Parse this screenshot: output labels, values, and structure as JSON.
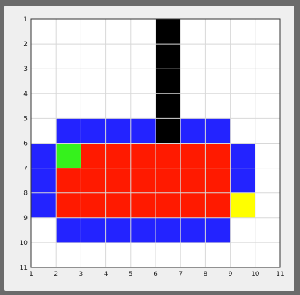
{
  "window": {
    "title": ""
  },
  "plot": {
    "xlim": [
      1,
      11
    ],
    "ylim": [
      1,
      11
    ],
    "y_reversed": true,
    "grid": true,
    "x_ticks": [
      "1",
      "2",
      "3",
      "4",
      "5",
      "6",
      "7",
      "8",
      "9",
      "10",
      "11"
    ],
    "y_ticks": [
      "1",
      "2",
      "3",
      "4",
      "5",
      "6",
      "7",
      "8",
      "9",
      "10",
      "11"
    ],
    "colors": {
      "background": "#ffffff",
      "grid": "#d8d8d8",
      "blue": "#2323ff",
      "red": "#ff1a00",
      "black": "#000000",
      "green": "#35f21c",
      "yellow": "#ffff00"
    },
    "cells": [
      {
        "name": "blue-top-bar",
        "color": "blue",
        "x0": 2,
        "x1": 9,
        "y0": 5,
        "y1": 6
      },
      {
        "name": "blue-bottom-bar",
        "color": "blue",
        "x0": 2,
        "x1": 9,
        "y0": 9,
        "y1": 10
      },
      {
        "name": "blue-left-bar",
        "color": "blue",
        "x0": 1,
        "x1": 2,
        "y0": 6,
        "y1": 9
      },
      {
        "name": "blue-right-bar",
        "color": "blue",
        "x0": 9,
        "x1": 10,
        "y0": 6,
        "y1": 8
      },
      {
        "name": "red-body",
        "color": "red",
        "x0": 2,
        "x1": 9,
        "y0": 6,
        "y1": 9
      },
      {
        "name": "black-column",
        "color": "black",
        "x0": 6,
        "x1": 7,
        "y0": 1,
        "y1": 6
      },
      {
        "name": "green-square",
        "color": "green",
        "x0": 2,
        "x1": 3,
        "y0": 6,
        "y1": 7
      },
      {
        "name": "yellow-square",
        "color": "yellow",
        "x0": 9,
        "x1": 10,
        "y0": 8,
        "y1": 9
      }
    ]
  }
}
